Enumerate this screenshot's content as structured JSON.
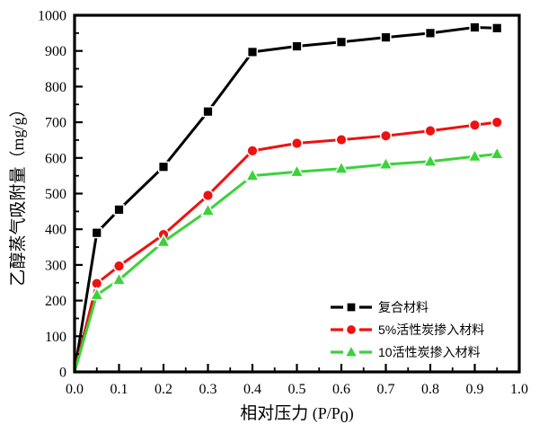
{
  "figure": {
    "background": "#ffffff",
    "border_color": "#000000"
  },
  "chart_data": {
    "type": "line",
    "title": "",
    "xlabel": "相对压力 (P/P0)",
    "xlabel_parts": {
      "cn": "相对压力",
      "latin_prefix": " (P/P",
      "sub": "0",
      "suffix": ")"
    },
    "ylabel": "乙醇蒸气吸附量（mg/g）",
    "ylabel_parts": {
      "cn": "乙醇蒸气吸附量",
      "unit": "（mg/g）"
    },
    "xlim": [
      0.0,
      1.0
    ],
    "ylim": [
      0,
      1000
    ],
    "x_major_ticks": [
      0.0,
      0.1,
      0.2,
      0.3,
      0.4,
      0.5,
      0.6,
      0.7,
      0.8,
      0.9,
      1.0
    ],
    "x_tick_labels": [
      "0.0",
      "0.1",
      "0.2",
      "0.3",
      "0.4",
      "0.5",
      "0.6",
      "0.7",
      "0.8",
      "0.9",
      "1.0"
    ],
    "y_major_ticks": [
      0,
      100,
      200,
      300,
      400,
      500,
      600,
      700,
      800,
      900,
      1000
    ],
    "y_tick_labels": [
      "0",
      "100",
      "200",
      "300",
      "400",
      "500",
      "600",
      "700",
      "800",
      "900",
      "1000"
    ],
    "x_minor_step": 0.05,
    "y_minor_step": 50,
    "grid": false,
    "tick_direction": "in",
    "legend_position": "inside-lower-right",
    "x": [
      0,
      0.05,
      0.1,
      0.2,
      0.3,
      0.4,
      0.5,
      0.6,
      0.7,
      0.8,
      0.9,
      0.95
    ],
    "series": [
      {
        "name": "复合材料",
        "marker": "square",
        "color": "#000000",
        "values": [
          0,
          390,
          455,
          575,
          730,
          897,
          913,
          925,
          938,
          950,
          966,
          964
        ]
      },
      {
        "name": "5%活性炭掺入材料",
        "marker": "circle",
        "color": "#ee1111",
        "values": [
          0,
          248,
          297,
          385,
          495,
          620,
          641,
          651,
          662,
          676,
          692,
          700
        ]
      },
      {
        "name": "10活性炭掺入材料",
        "marker": "triangle",
        "color": "#3ad33a",
        "values": [
          0,
          216,
          258,
          365,
          452,
          550,
          561,
          570,
          582,
          590,
          604,
          611
        ]
      }
    ]
  }
}
